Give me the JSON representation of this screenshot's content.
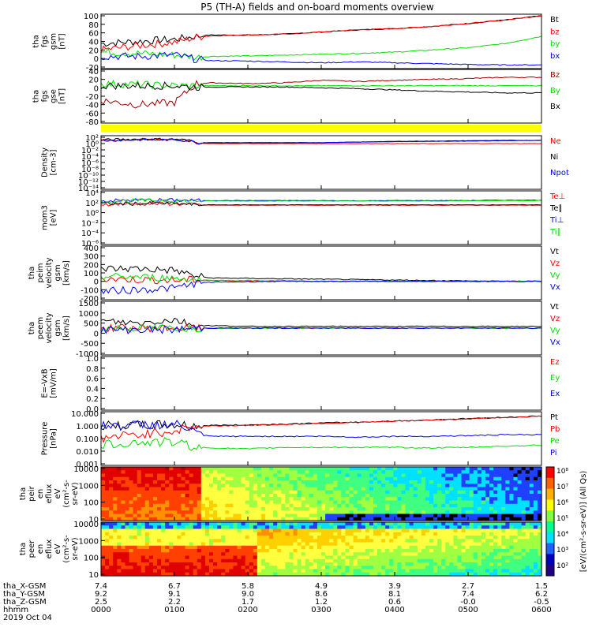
{
  "title": "P5 (TH-A) fields and on-board moments overview",
  "colors": {
    "black": "#000000",
    "red": "#ff0000",
    "darkred": "#a00000",
    "green": "#00e000",
    "blue": "#0000ff",
    "yellow": "#ffff00"
  },
  "panels": [
    {
      "id": "fgs-gsm",
      "ylabel": [
        "tha",
        "fgs",
        "gsm",
        "[nT]"
      ],
      "ticks": [
        "100",
        "80",
        "60",
        "40",
        "20",
        "0",
        "-20"
      ],
      "legend": [
        {
          "label": "Bt",
          "color": "black"
        },
        {
          "label": "bz",
          "color": "red"
        },
        {
          "label": "by",
          "color": "green"
        },
        {
          "label": "bx",
          "color": "blue"
        }
      ]
    },
    {
      "id": "fgs-gse",
      "ylabel": [
        "tha",
        "fgs",
        "gse",
        "[nT]"
      ],
      "ticks": [
        "40",
        "20",
        "0",
        "-20",
        "-40",
        "-60",
        "-80"
      ],
      "legend": [
        {
          "label": "Bz",
          "color": "darkred"
        },
        {
          "label": "By",
          "color": "green"
        },
        {
          "label": "Bx",
          "color": "black"
        }
      ]
    },
    {
      "id": "density",
      "ylabel": [
        "Density",
        "[cm-3]"
      ],
      "ticks": [
        "10²",
        "10⁰",
        "10⁻²",
        "10⁻⁴",
        "10⁻⁶",
        "10⁻⁸",
        "10⁻¹⁰",
        "10⁻¹²",
        "10⁻¹⁴"
      ],
      "legend": [
        {
          "label": "Ne",
          "color": "red"
        },
        {
          "label": "Ni",
          "color": "black"
        },
        {
          "label": "Npot",
          "color": "blue"
        }
      ]
    },
    {
      "id": "temperature",
      "ylabel": [
        "mom3",
        "[eV]"
      ],
      "ticks": [
        "10⁴",
        "10²",
        "10⁰",
        "10⁻²",
        "10⁻⁴",
        "10⁻⁶"
      ],
      "legend": [
        {
          "label": "Te⊥",
          "color": "red"
        },
        {
          "label": "Te∥",
          "color": "black"
        },
        {
          "label": "Ti⊥",
          "color": "blue"
        },
        {
          "label": "Ti∥",
          "color": "green"
        }
      ]
    },
    {
      "id": "peim-velocity",
      "ylabel": [
        "tha",
        "peim",
        "velocity",
        "gsm",
        "[km/s]"
      ],
      "ticks": [
        "400",
        "300",
        "200",
        "100",
        "0",
        "-100",
        "-200"
      ],
      "legend": [
        {
          "label": "Vt",
          "color": "black"
        },
        {
          "label": "Vz",
          "color": "red"
        },
        {
          "label": "Vy",
          "color": "green"
        },
        {
          "label": "Vx",
          "color": "blue"
        }
      ]
    },
    {
      "id": "peem-velocity",
      "ylabel": [
        "tha",
        "peem",
        "velocity",
        "gsm",
        "[km/s]"
      ],
      "ticks": [
        "1500",
        "1000",
        "500",
        "0",
        "-500",
        "-1000"
      ],
      "legend": [
        {
          "label": "Vt",
          "color": "black"
        },
        {
          "label": "Vz",
          "color": "red"
        },
        {
          "label": "Vy",
          "color": "green"
        },
        {
          "label": "Vx",
          "color": "blue"
        }
      ]
    },
    {
      "id": "e-field",
      "ylabel": [
        "E=-VxB",
        "[mV/m]"
      ],
      "ticks": [
        "1.0",
        "0.8",
        "0.6",
        "0.4",
        "0.2",
        "0.0"
      ],
      "legend": [
        {
          "label": "Ez",
          "color": "red"
        },
        {
          "label": "Ey",
          "color": "green"
        },
        {
          "label": "Ex",
          "color": "blue"
        }
      ]
    },
    {
      "id": "pressure",
      "ylabel": [
        "Pressure",
        "[nPa]"
      ],
      "ticks": [
        "10.000",
        "1.000",
        "0.100",
        "0.010",
        "0.001"
      ],
      "legend": [
        {
          "label": "Pt",
          "color": "black"
        },
        {
          "label": "Pb",
          "color": "red"
        },
        {
          "label": "Pe",
          "color": "green"
        },
        {
          "label": "Pi",
          "color": "blue"
        }
      ]
    },
    {
      "id": "peir-eflux",
      "ylabel": [
        "tha",
        "peir",
        "en",
        "eflux",
        "eV",
        "(cm²-s-",
        "sr-eV)"
      ],
      "ticks": [
        "10000",
        "1000",
        "100",
        "10"
      ]
    },
    {
      "id": "peer-eflux",
      "ylabel": [
        "tha",
        "peer",
        "en",
        "eflux",
        "eV",
        "(cm²-s-",
        "sr-eV)"
      ],
      "ticks": [
        "10000",
        "1000",
        "100",
        "10"
      ]
    }
  ],
  "colorbar": {
    "ticks": [
      "10⁸",
      "10⁷",
      "10⁶",
      "10⁵",
      "10⁴",
      "10³",
      "10²"
    ],
    "label": "[eV/(cm²-s-sr-eV)] (All Qs)"
  },
  "orbit": {
    "labels": [
      "tha_X-GSM",
      "tha_Y-GSM",
      "tha_Z-GSM",
      "hhmm",
      "2019 Oct 04"
    ],
    "rows": [
      [
        "7.4",
        "6.7",
        "5.8",
        "4.9",
        "3.9",
        "2.7",
        "1.5"
      ],
      [
        "9.2",
        "9.1",
        "9.0",
        "8.6",
        "8.1",
        "7.4",
        "6.2"
      ],
      [
        "2.5",
        "2.2",
        "1.7",
        "1.2",
        "0.6",
        "-0.0",
        "-0.5"
      ],
      [
        "0000",
        "0100",
        "0200",
        "0300",
        "0400",
        "0500",
        "0600"
      ]
    ]
  },
  "chart_data": {
    "type": "line",
    "title": "P5 (TH-A) fields and on-board moments overview",
    "x_ticks": [
      "0000",
      "0100",
      "0200",
      "0300",
      "0400",
      "0500",
      "0600"
    ],
    "date": "2019 Oct 04",
    "x_hours": [
      0,
      0.5,
      1,
      1.3,
      1.5,
      2,
      2.5,
      3,
      3.5,
      4,
      4.5,
      5,
      5.5,
      6
    ],
    "panels": [
      {
        "id": "fgs-gsm",
        "ylim": [
          -20,
          100
        ],
        "scale": "linear",
        "series": [
          {
            "name": "Bt",
            "color": "black",
            "values": [
              35,
              40,
              45,
              52,
              55,
              55,
              57,
              62,
              67,
              70,
              75,
              82,
              90,
              100
            ]
          },
          {
            "name": "bz",
            "color": "red",
            "values": [
              20,
              30,
              38,
              50,
              53,
              55,
              57,
              62,
              67,
              70,
              75,
              82,
              90,
              100
            ]
          },
          {
            "name": "by",
            "color": "green",
            "values": [
              15,
              12,
              8,
              3,
              5,
              6,
              8,
              10,
              12,
              15,
              20,
              25,
              35,
              52
            ]
          },
          {
            "name": "bx",
            "color": "blue",
            "values": [
              5,
              5,
              8,
              -2,
              -5,
              -6,
              -8,
              -10,
              -8,
              -10,
              -12,
              -14,
              -15,
              -15
            ]
          }
        ]
      },
      {
        "id": "fgs-gse",
        "ylim": [
          -80,
          40
        ],
        "scale": "linear",
        "series": [
          {
            "name": "Bz",
            "color": "darkred",
            "values": [
              -30,
              -40,
              -35,
              10,
              12,
              10,
              12,
              18,
              15,
              18,
              20,
              22,
              25,
              25
            ]
          },
          {
            "name": "By",
            "color": "green",
            "values": [
              10,
              8,
              5,
              5,
              5,
              5,
              5,
              5,
              5,
              5,
              5,
              5,
              5,
              5
            ]
          },
          {
            "name": "Bx",
            "color": "black",
            "values": [
              5,
              5,
              5,
              2,
              2,
              2,
              2,
              0,
              -2,
              -5,
              -8,
              -10,
              -12,
              -12
            ]
          }
        ]
      },
      {
        "id": "density",
        "ylim": [
          1e-14,
          100
        ],
        "scale": "log",
        "series": [
          {
            "name": "Ne",
            "color": "red",
            "values": [
              10,
              20,
              20,
              1,
              1,
              1,
              1,
              1,
              1,
              1,
              1,
              1,
              1,
              1
            ]
          },
          {
            "name": "Ni",
            "color": "black",
            "values": [
              15,
              25,
              25,
              2,
              2,
              2,
              2,
              2,
              3,
              5,
              6,
              8,
              10,
              10
            ]
          },
          {
            "name": "Npot",
            "color": "blue",
            "values": [
              8,
              15,
              15,
              1.5,
              1.5,
              1.5,
              1.5,
              2,
              3,
              4,
              5,
              6,
              8,
              10
            ]
          }
        ]
      },
      {
        "id": "temperature",
        "ylim": [
          1e-06,
          10000
        ],
        "scale": "log",
        "series": [
          {
            "name": "Te⊥",
            "color": "red",
            "values": [
              50,
              60,
              60,
              30,
              30,
              30,
              30,
              30,
              30,
              30,
              30,
              30,
              30,
              30
            ]
          },
          {
            "name": "Te∥",
            "color": "black",
            "values": [
              55,
              65,
              65,
              35,
              35,
              35,
              35,
              35,
              35,
              35,
              35,
              35,
              35,
              35
            ]
          },
          {
            "name": "Ti⊥",
            "color": "blue",
            "values": [
              200,
              300,
              300,
              250,
              250,
              250,
              250,
              250,
              220,
              250,
              250,
              250,
              300,
              300
            ]
          },
          {
            "name": "Ti∥",
            "color": "green",
            "values": [
              150,
              250,
              250,
              200,
              200,
              200,
              200,
              200,
              200,
              200,
              200,
              220,
              250,
              250
            ]
          }
        ]
      },
      {
        "id": "peim-velocity",
        "ylim": [
          -200,
          400
        ],
        "scale": "linear",
        "series": [
          {
            "name": "Vt",
            "color": "black",
            "values": [
              150,
              150,
              130,
              60,
              40,
              35,
              30,
              25,
              20,
              15,
              10,
              5,
              0,
              0
            ]
          },
          {
            "name": "Vz",
            "color": "red",
            "values": [
              30,
              20,
              10,
              20,
              10,
              5,
              5,
              0,
              0,
              0,
              0,
              0,
              0,
              0
            ]
          },
          {
            "name": "Vy",
            "color": "green",
            "values": [
              60,
              50,
              40,
              20,
              10,
              10,
              5,
              0,
              0,
              0,
              0,
              0,
              0,
              0
            ]
          },
          {
            "name": "Vx",
            "color": "blue",
            "values": [
              -120,
              -100,
              -80,
              -20,
              -10,
              -5,
              0,
              0,
              0,
              0,
              0,
              0,
              0,
              0
            ]
          }
        ]
      },
      {
        "id": "peem-velocity",
        "ylim": [
          -1500,
          1500
        ],
        "scale": "linear",
        "series": [
          {
            "name": "Vt",
            "color": "black",
            "values": [
              400,
              300,
              500,
              150,
              150,
              100,
              100,
              100,
              100,
              100,
              100,
              100,
              100,
              100
            ]
          },
          {
            "name": "Vz",
            "color": "red",
            "values": [
              0,
              0,
              0,
              0,
              0,
              0,
              0,
              0,
              0,
              0,
              0,
              0,
              0,
              0
            ]
          },
          {
            "name": "Vy",
            "color": "green",
            "values": [
              0,
              0,
              0,
              0,
              0,
              0,
              0,
              0,
              0,
              0,
              0,
              0,
              0,
              0
            ]
          },
          {
            "name": "Vx",
            "color": "blue",
            "values": [
              -100,
              -100,
              -100,
              0,
              0,
              0,
              0,
              0,
              0,
              0,
              0,
              0,
              0,
              0
            ]
          }
        ]
      },
      {
        "id": "e-field",
        "ylim": [
          0,
          1
        ],
        "scale": "linear",
        "series": []
      },
      {
        "id": "pressure",
        "ylim": [
          0.001,
          10
        ],
        "scale": "log",
        "series": [
          {
            "name": "Pt",
            "color": "black",
            "values": [
              1.0,
              1.1,
              1.2,
              1.0,
              1.1,
              1.2,
              1.4,
              1.7,
              2.0,
              2.4,
              3.0,
              3.8,
              4.8,
              6.0
            ]
          },
          {
            "name": "Pb",
            "color": "red",
            "values": [
              0.1,
              0.2,
              0.4,
              0.9,
              1.0,
              1.1,
              1.3,
              1.6,
              1.9,
              2.3,
              2.9,
              3.6,
              4.6,
              5.8
            ]
          },
          {
            "name": "Pe",
            "color": "green",
            "values": [
              0.03,
              0.05,
              0.05,
              0.02,
              0.018,
              0.015,
              0.02,
              0.02,
              0.02,
              0.02,
              0.018,
              0.02,
              0.025,
              0.03
            ]
          },
          {
            "name": "Pi",
            "color": "blue",
            "values": [
              1.0,
              1.2,
              1.3,
              0.2,
              0.15,
              0.15,
              0.15,
              0.15,
              0.13,
              0.15,
              0.15,
              0.17,
              0.2,
              0.2
            ]
          }
        ]
      }
    ]
  }
}
